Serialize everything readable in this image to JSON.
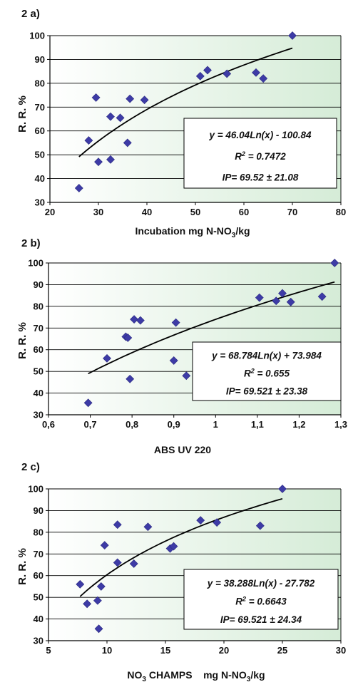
{
  "chart_data": [
    {
      "type": "scatter",
      "panel_label": "2 a)",
      "ylabel": "R. R. %",
      "xlabel": "Incubation mg N-NO3/kg",
      "xlim": [
        20,
        80
      ],
      "ylim": [
        30,
        100
      ],
      "x_ticks": [
        "20",
        "30",
        "40",
        "50",
        "60",
        "70",
        "80"
      ],
      "y_ticks": [
        "30",
        "40",
        "50",
        "60",
        "70",
        "80",
        "90",
        "100"
      ],
      "grid": true,
      "points": [
        {
          "x": 26,
          "y": 36
        },
        {
          "x": 28,
          "y": 56
        },
        {
          "x": 29.5,
          "y": 74
        },
        {
          "x": 30,
          "y": 47
        },
        {
          "x": 32.5,
          "y": 66
        },
        {
          "x": 32.5,
          "y": 48
        },
        {
          "x": 34.5,
          "y": 65.5
        },
        {
          "x": 36,
          "y": 55
        },
        {
          "x": 36.5,
          "y": 73.5
        },
        {
          "x": 39.5,
          "y": 73
        },
        {
          "x": 51,
          "y": 83
        },
        {
          "x": 52.5,
          "y": 85.5
        },
        {
          "x": 56.5,
          "y": 84
        },
        {
          "x": 62.5,
          "y": 84.5
        },
        {
          "x": 64,
          "y": 82
        },
        {
          "x": 70,
          "y": 100
        }
      ],
      "trendline": {
        "type": "log",
        "a": 46.04,
        "b": -100.84,
        "x_range": [
          26,
          70
        ]
      },
      "equation": {
        "line1": "y = 46.04Ln(x) - 100.84",
        "line2": "R",
        "line2_sup": "2",
        "line2_rest": " = 0.7472",
        "line3": "IP= 69.52 ± 21.08"
      }
    },
    {
      "type": "scatter",
      "panel_label": "2 b)",
      "ylabel": "R. R. %",
      "xlabel": "ABS UV 220",
      "xlim": [
        0.6,
        1.3
      ],
      "ylim": [
        30,
        100
      ],
      "x_ticks": [
        "0,6",
        "0,7",
        "0,8",
        "0,9",
        "1",
        "1,1",
        "1,2",
        "1,3"
      ],
      "y_ticks": [
        "30",
        "40",
        "50",
        "60",
        "70",
        "80",
        "90",
        "100"
      ],
      "grid": true,
      "points": [
        {
          "x": 0.695,
          "y": 35.5
        },
        {
          "x": 0.74,
          "y": 56
        },
        {
          "x": 0.785,
          "y": 66
        },
        {
          "x": 0.79,
          "y": 65.5
        },
        {
          "x": 0.795,
          "y": 46.5
        },
        {
          "x": 0.805,
          "y": 74
        },
        {
          "x": 0.82,
          "y": 73.5
        },
        {
          "x": 0.9,
          "y": 55
        },
        {
          "x": 0.905,
          "y": 72.5
        },
        {
          "x": 0.93,
          "y": 48
        },
        {
          "x": 1.105,
          "y": 84
        },
        {
          "x": 1.145,
          "y": 82.5
        },
        {
          "x": 1.16,
          "y": 86
        },
        {
          "x": 1.18,
          "y": 82
        },
        {
          "x": 1.255,
          "y": 84.5
        },
        {
          "x": 1.285,
          "y": 100
        }
      ],
      "trendline": {
        "type": "log",
        "a": 68.784,
        "b": 73.984,
        "x_range": [
          0.695,
          1.285
        ]
      },
      "equation": {
        "line1": "y = 68.784Ln(x) + 73.984",
        "line2": "R",
        "line2_sup": "2",
        "line2_rest": " = 0.655",
        "line3": "IP= 69.521 ± 23.38"
      }
    },
    {
      "type": "scatter",
      "panel_label": "2 c)",
      "ylabel": "R. R. %",
      "xlabel": "NO3 CHAMPS    mg N-NO3/kg",
      "xlim": [
        5,
        30
      ],
      "ylim": [
        30,
        100
      ],
      "x_ticks": [
        "5",
        "10",
        "15",
        "20",
        "25",
        "30"
      ],
      "y_ticks": [
        "30",
        "40",
        "50",
        "60",
        "70",
        "80",
        "90",
        "100"
      ],
      "grid": true,
      "points": [
        {
          "x": 7.7,
          "y": 56
        },
        {
          "x": 8.3,
          "y": 47
        },
        {
          "x": 9.2,
          "y": 48.5
        },
        {
          "x": 9.3,
          "y": 35.5
        },
        {
          "x": 9.5,
          "y": 55
        },
        {
          "x": 9.8,
          "y": 74
        },
        {
          "x": 10.9,
          "y": 66
        },
        {
          "x": 10.9,
          "y": 83.5
        },
        {
          "x": 12.3,
          "y": 65.5
        },
        {
          "x": 13.5,
          "y": 82.5
        },
        {
          "x": 15.4,
          "y": 72.5
        },
        {
          "x": 15.7,
          "y": 73.5
        },
        {
          "x": 18,
          "y": 85.5
        },
        {
          "x": 19.4,
          "y": 84.5
        },
        {
          "x": 23.1,
          "y": 83
        },
        {
          "x": 25,
          "y": 100
        }
      ],
      "trendline": {
        "type": "log",
        "a": 38.288,
        "b": -27.782,
        "x_range": [
          7.7,
          25
        ]
      },
      "equation": {
        "line1": "y = 38.288Ln(x) - 27.782",
        "line2": "R",
        "line2_sup": "2",
        "line2_rest": " = 0.6643",
        "line3": "IP= 69.521 ± 24.34"
      }
    }
  ],
  "colors": {
    "marker": "#3d3ba6",
    "plot_bg_left": "#ffffff",
    "plot_bg_right": "#d5ecd7",
    "trend": "#000000",
    "grid": "#000000"
  }
}
